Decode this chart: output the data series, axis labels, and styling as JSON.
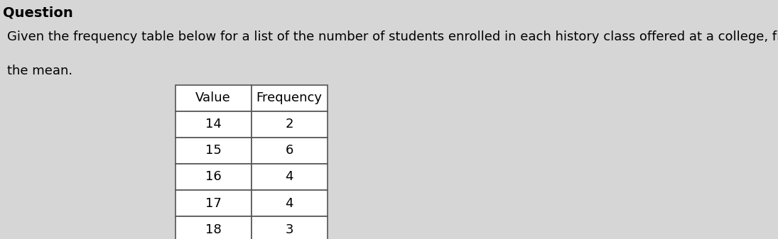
{
  "question_text_line1": "Given the frequency table below for a list of the number of students enrolled in each history class offered at a college, find",
  "question_text_line2": "the mean.",
  "question_label": "Question",
  "table_headers": [
    "Value",
    "Frequency"
  ],
  "table_data": [
    [
      14,
      2
    ],
    [
      15,
      6
    ],
    [
      16,
      4
    ],
    [
      17,
      4
    ],
    [
      18,
      3
    ]
  ],
  "background_color": "#d6d6d6",
  "table_bg": "#ffffff",
  "text_color": "#000000",
  "font_size_question": 13,
  "font_size_table": 13,
  "font_size_label": 14
}
